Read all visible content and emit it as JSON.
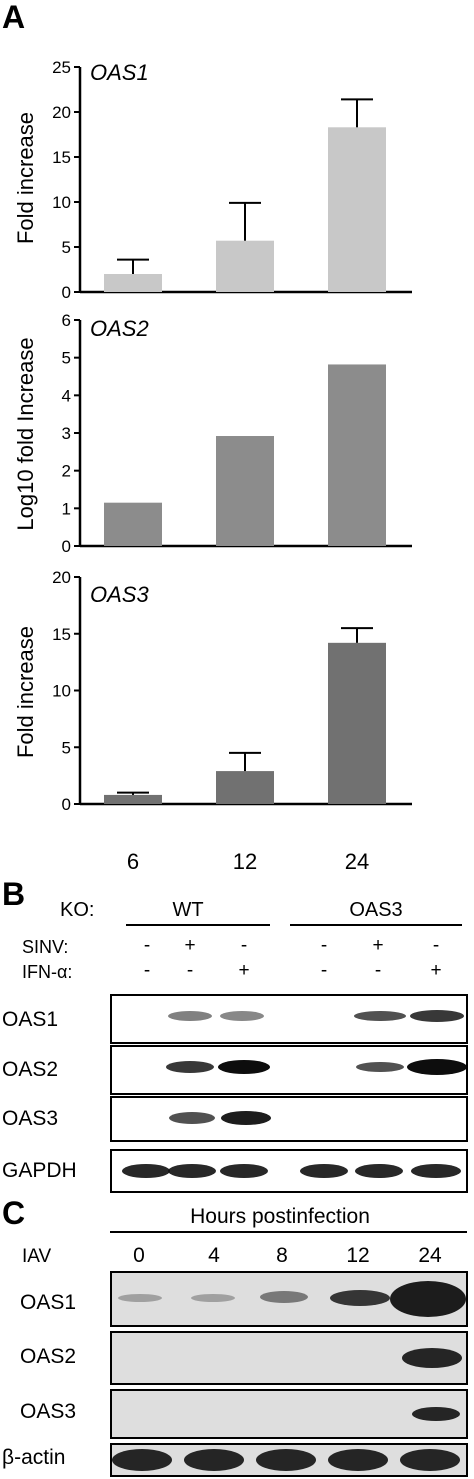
{
  "panel_a": {
    "letter": "A",
    "x_tick_labels": [
      "6",
      "12",
      "24"
    ]
  },
  "panel_b": {
    "letter": "B",
    "ko_label": "KO:",
    "groups": [
      "WT",
      "OAS3"
    ],
    "sinv_label": "SINV:",
    "ifn_label": "IFN-α:",
    "sinv_signs": [
      "-",
      "+",
      "-",
      "-",
      "+",
      "-"
    ],
    "ifn_signs": [
      "-",
      "-",
      "+",
      "-",
      "-",
      "+"
    ],
    "blot_labels": [
      "OAS1",
      "OAS2",
      "OAS3",
      "GAPDH"
    ]
  },
  "panel_c": {
    "letter": "C",
    "header": "Hours postinfection",
    "row_label": "IAV",
    "time_points": [
      "0",
      "4",
      "8",
      "12",
      "24"
    ],
    "blot_labels": [
      "OAS1",
      "OAS2",
      "OAS3",
      "β-actin"
    ]
  },
  "chart_data": [
    {
      "type": "bar",
      "title": "OAS1",
      "ylabel": "Fold increase",
      "categories": [
        "6",
        "12",
        "24"
      ],
      "values": [
        2.0,
        5.7,
        18.3
      ],
      "errors": [
        1.6,
        4.2,
        3.1
      ],
      "ylim": [
        0,
        25
      ],
      "yticks": [
        0,
        5,
        10,
        15,
        20,
        25
      ],
      "color": "#c8c8c8"
    },
    {
      "type": "bar",
      "title": "OAS2",
      "ylabel": "Log10 fold Increase",
      "categories": [
        "6",
        "12",
        "24"
      ],
      "values": [
        1.15,
        2.92,
        4.82
      ],
      "ylim": [
        0,
        6
      ],
      "yticks": [
        0,
        1,
        2,
        3,
        4,
        5,
        6
      ],
      "color": "#8c8c8c"
    },
    {
      "type": "bar",
      "title": "OAS3",
      "ylabel": "Fold increase",
      "categories": [
        "6",
        "12",
        "24"
      ],
      "values": [
        0.8,
        2.9,
        14.2
      ],
      "errors": [
        0.2,
        1.6,
        1.3
      ],
      "ylim": [
        0,
        20
      ],
      "yticks": [
        0,
        5,
        10,
        15,
        20
      ],
      "color": "#717171"
    }
  ]
}
